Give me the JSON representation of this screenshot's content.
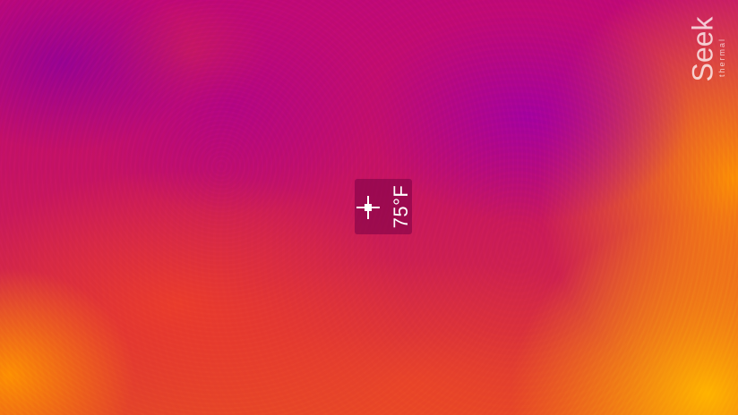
{
  "thermal_view": {
    "palette": "iron",
    "spot_meter": {
      "temperature": "75°F"
    }
  },
  "brand": {
    "name": "Seek",
    "subtitle": "thermal"
  },
  "colors": {
    "cool": "#a000aa",
    "mid": "#c51268",
    "warm": "#e2452c",
    "hot": "#ffb000",
    "label": "#ffffff"
  }
}
